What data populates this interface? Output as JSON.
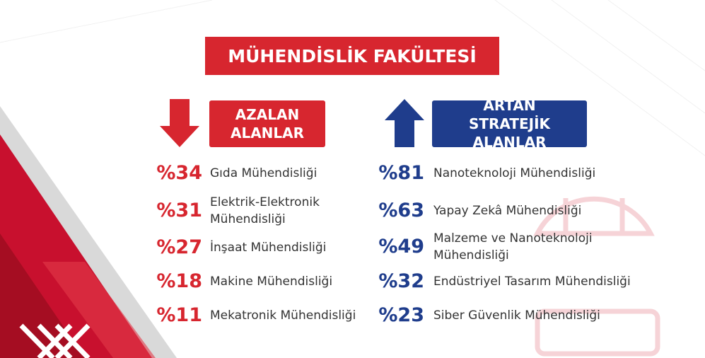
{
  "title": "MÜHENDİSLİK FAKÜLTESİ",
  "decreasing": {
    "label": "AZALAN ALANLAR",
    "items": [
      {
        "percent": "%34",
        "name": "Gıda Mühendisliği"
      },
      {
        "percent": "%31",
        "name": "Elektrik-Elektronik Mühendisliği"
      },
      {
        "percent": "%27",
        "name": "İnşaat Mühendisliği"
      },
      {
        "percent": "%18",
        "name": "Makine Mühendisliği"
      },
      {
        "percent": "%11",
        "name": "Mekatronik Mühendisliği"
      }
    ]
  },
  "increasing": {
    "label": "ARTAN STRATEJİK ALANLAR",
    "items": [
      {
        "percent": "%81",
        "name": "Nanoteknoloji Mühendisliği"
      },
      {
        "percent": "%63",
        "name": "Yapay Zekâ Mühendisliği"
      },
      {
        "percent": "%49",
        "name": "Malzeme ve Nanoteknoloji Mühendisliği"
      },
      {
        "percent": "%32",
        "name": "Endüstriyel Tasarım Mühendisliği"
      },
      {
        "percent": "%23",
        "name": "Siber Güvenlik Mühendisliği"
      }
    ]
  }
}
